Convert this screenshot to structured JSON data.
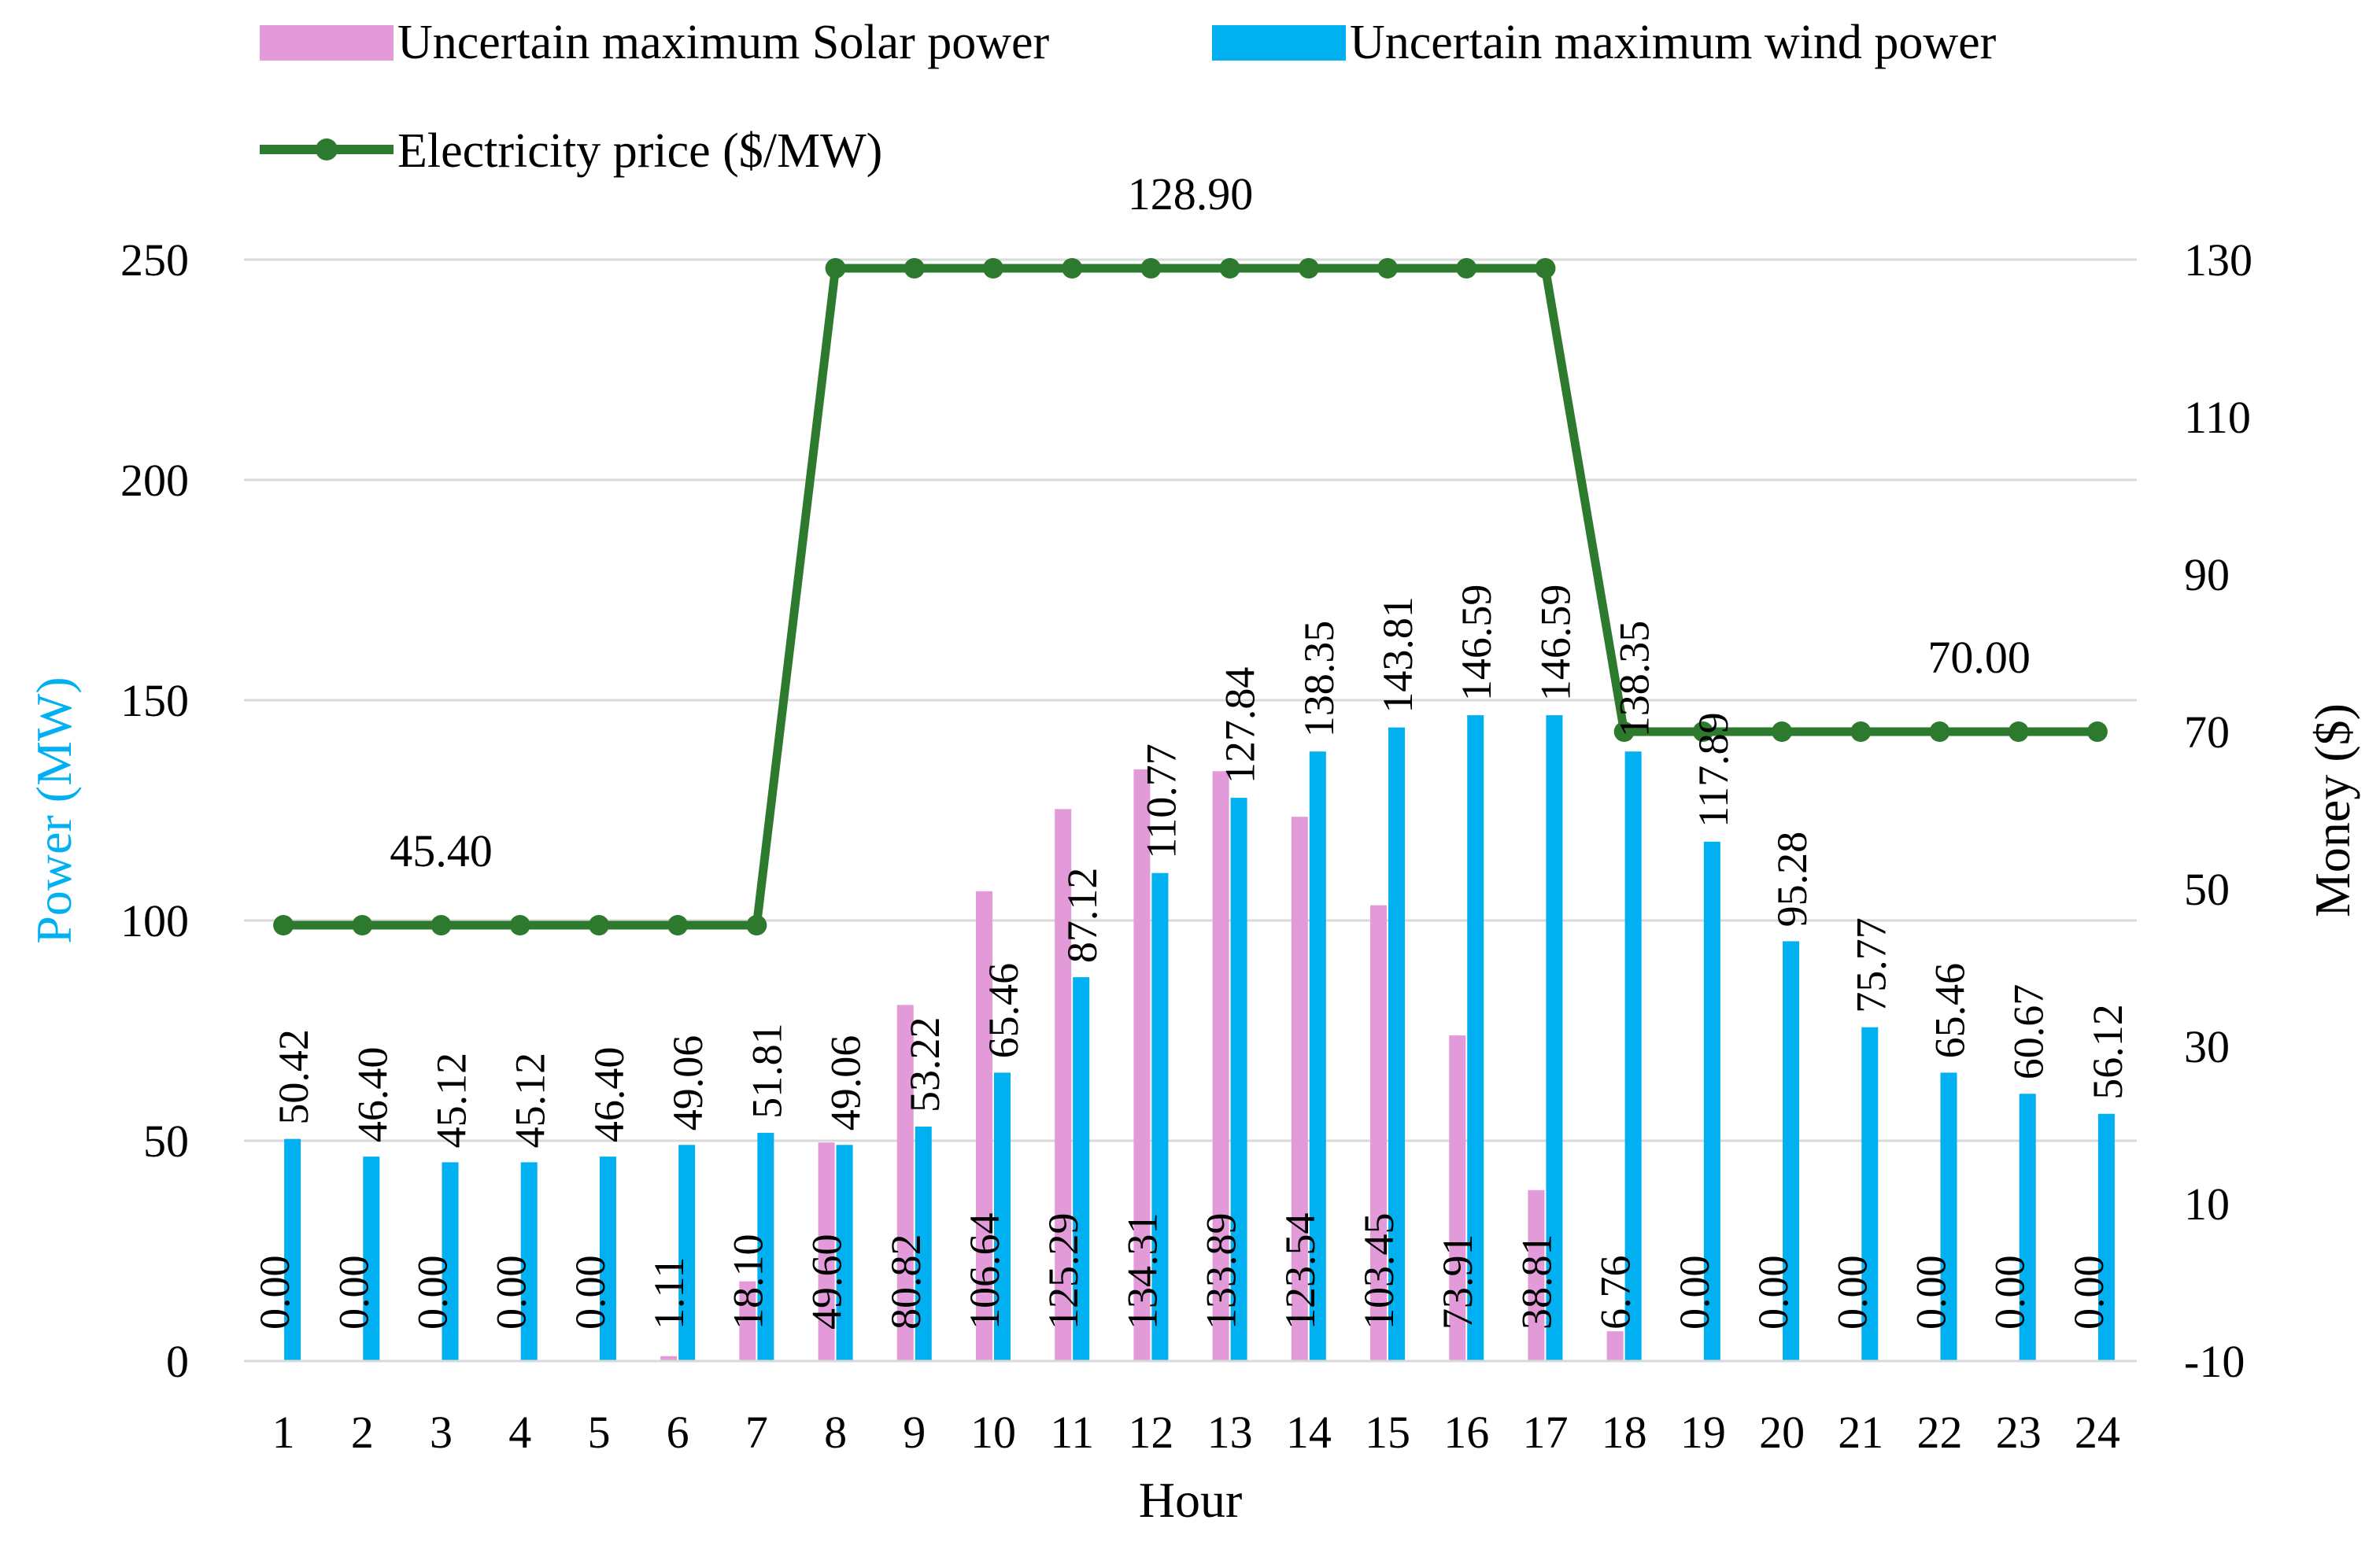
{
  "chart_data": {
    "type": "bar",
    "title": "",
    "xlabel": "Hour",
    "ylabel_left": "Power (MW)",
    "ylabel_right": "Money ($)",
    "ylim_left": [
      0,
      250
    ],
    "yticks_left": [
      "0",
      "50",
      "100",
      "150",
      "200",
      "250"
    ],
    "ylim_right": [
      -10,
      130
    ],
    "yticks_right": [
      "-10",
      "10",
      "30",
      "50",
      "70",
      "90",
      "110",
      "130"
    ],
    "grid": true,
    "legend_position": "top-left",
    "categories": [
      "1",
      "2",
      "3",
      "4",
      "5",
      "6",
      "7",
      "8",
      "9",
      "10",
      "11",
      "12",
      "13",
      "14",
      "15",
      "16",
      "17",
      "18",
      "19",
      "20",
      "21",
      "22",
      "23",
      "24"
    ],
    "series": [
      {
        "name": "Uncertain maximum Solar power",
        "axis": "left",
        "color": "#e39ad9",
        "values": [
          0.0,
          0.0,
          0.0,
          0.0,
          0.0,
          1.11,
          18.1,
          49.6,
          80.82,
          106.64,
          125.29,
          134.31,
          133.89,
          123.54,
          103.45,
          73.91,
          38.81,
          6.76,
          0.0,
          0.0,
          0.0,
          0.0,
          0.0,
          0.0
        ],
        "labels": [
          "0.00",
          "0.00",
          "0.00",
          "0.00",
          "0.00",
          "1.11",
          "18.10",
          "49.60",
          "80.82",
          "106.64",
          "125.29",
          "134.31",
          "133.89",
          "123.54",
          "103.45",
          "73.91",
          "38.81",
          "6.76",
          "0.00",
          "0.00",
          "0.00",
          "0.00",
          "0.00",
          "0.00"
        ]
      },
      {
        "name": "Uncertain maximum wind power",
        "axis": "left",
        "color": "#00b0f0",
        "values": [
          50.42,
          46.4,
          45.12,
          45.12,
          46.4,
          49.06,
          51.81,
          49.06,
          53.22,
          65.46,
          87.12,
          110.77,
          127.84,
          138.35,
          143.81,
          146.59,
          146.59,
          138.35,
          117.89,
          95.28,
          75.77,
          65.46,
          60.67,
          56.12
        ],
        "labels": [
          "50.42",
          "46.40",
          "45.12",
          "45.12",
          "46.40",
          "49.06",
          "51.81",
          "49.06",
          "53.22",
          "65.46",
          "87.12",
          "110.77",
          "127.84",
          "138.35",
          "143.81",
          "146.59",
          "146.59",
          "138.35",
          "117.89",
          "95.28",
          "75.77",
          "65.46",
          "60.67",
          "56.12"
        ]
      },
      {
        "name": "Electricity price ($/MW)",
        "axis": "right",
        "type": "line",
        "color": "#2d7a2e",
        "values": [
          45.4,
          45.4,
          45.4,
          45.4,
          45.4,
          45.4,
          45.4,
          128.9,
          128.9,
          128.9,
          128.9,
          128.9,
          128.9,
          128.9,
          128.9,
          128.9,
          128.9,
          70.0,
          70.0,
          70.0,
          70.0,
          70.0,
          70.0,
          70.0
        ]
      }
    ],
    "annotations": [
      {
        "text": "45.40",
        "index": 2,
        "value": 45.4
      },
      {
        "text": "128.90",
        "index": 11.5,
        "value": 128.9
      },
      {
        "text": "70.00",
        "index": 21.5,
        "value": 70.0
      }
    ]
  }
}
